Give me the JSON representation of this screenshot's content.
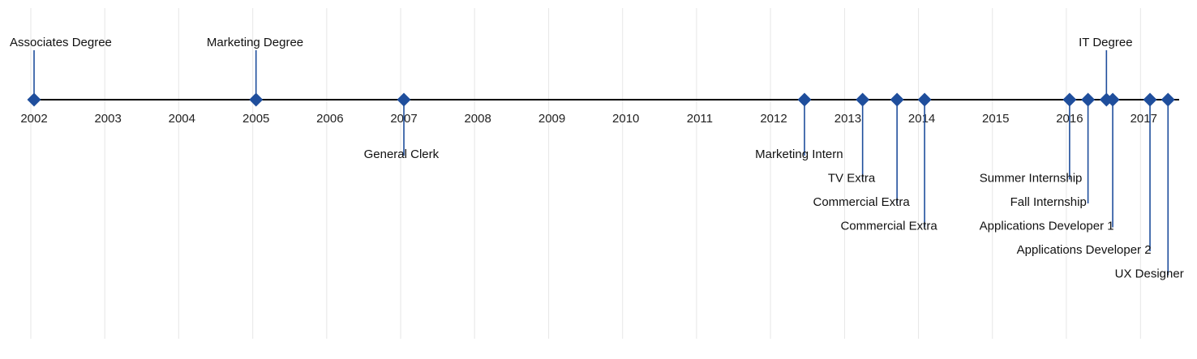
{
  "chart_data": {
    "type": "timeline",
    "xlim": [
      "2002-01-01",
      "2017-06-01"
    ],
    "x_ticks": [
      "2002",
      "2003",
      "2004",
      "2005",
      "2006",
      "2007",
      "2008",
      "2009",
      "2010",
      "2011",
      "2012",
      "2013",
      "2014",
      "2015",
      "2016",
      "2017"
    ],
    "grid": "vertical",
    "colors": {
      "marker": "#1f4e9c",
      "axis": "#000000",
      "grid": "#e6e6e6",
      "text": "#111111"
    },
    "events": [
      {
        "label": "Associates Degree",
        "date": "2002-01-01",
        "side": "above",
        "level": 1
      },
      {
        "label": "Marketing Degree",
        "date": "2005-01-01",
        "side": "above",
        "level": 1
      },
      {
        "label": "General Clerk",
        "date": "2007-01-01",
        "side": "below",
        "level": 1
      },
      {
        "label": "Marketing Intern",
        "date": "2012-06-01",
        "side": "below",
        "level": 1
      },
      {
        "label": "TV Extra",
        "date": "2013-03-15",
        "side": "below",
        "level": 2
      },
      {
        "label": "Commercial Extra",
        "date": "2013-09-01",
        "side": "below",
        "level": 3
      },
      {
        "label": "Commercial Extra",
        "date": "2014-01-15",
        "side": "below",
        "level": 4
      },
      {
        "label": "Summer Internship",
        "date": "2016-01-01",
        "side": "below",
        "level": 2
      },
      {
        "label": "Fall Internship",
        "date": "2016-04-01",
        "side": "below",
        "level": 3
      },
      {
        "label": "IT Degree",
        "date": "2016-07-01",
        "side": "above",
        "level": 1
      },
      {
        "label": "Applications Developer 1",
        "date": "2016-08-01",
        "side": "below",
        "level": 4
      },
      {
        "label": "Applications Developer 2",
        "date": "2017-02-01",
        "side": "below",
        "level": 5
      },
      {
        "label": "UX Designer",
        "date": "2017-05-01",
        "side": "below",
        "level": 6
      }
    ]
  }
}
